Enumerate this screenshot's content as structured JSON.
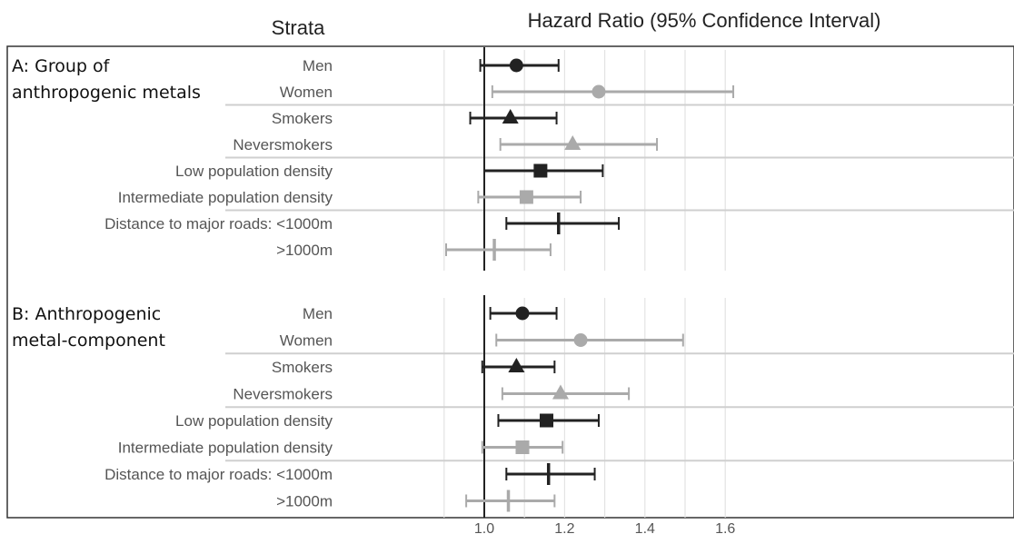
{
  "header": {
    "strata_title": "Strata",
    "chart_title": "Hazard Ratio (95% Confidence Interval)"
  },
  "colors": {
    "dark": "#222222",
    "light": "#aaaaaa",
    "grid": "#e3e3e3",
    "separator": "#cfcfcf",
    "reference": "#222222"
  },
  "chart_data": {
    "type": "forest",
    "title": "Hazard Ratio (95% Confidence Interval)",
    "xlim": [
      0.8,
      1.65
    ],
    "xticks": [
      1.0,
      1.2,
      1.4,
      1.6
    ],
    "xtick_labels": [
      "1.0",
      "1.2",
      "1.4",
      "1.6"
    ],
    "gridlines": [
      0.9,
      1.0,
      1.1,
      1.2,
      1.3,
      1.4,
      1.5,
      1.6
    ],
    "reference_line": 1.0,
    "panels": [
      {
        "label": "A: Group of\nanthropogenic metals",
        "rows": [
          {
            "stratum": "Men",
            "hr": 1.08,
            "lo": 0.99,
            "hi": 1.185,
            "marker": "circle",
            "shade": "dark"
          },
          {
            "stratum": "Women",
            "hr": 1.285,
            "lo": 1.02,
            "hi": 1.62,
            "marker": "circle",
            "shade": "light"
          },
          {
            "stratum": "Smokers",
            "hr": 1.065,
            "lo": 0.965,
            "hi": 1.18,
            "marker": "triangle",
            "shade": "dark"
          },
          {
            "stratum": "Neversmokers",
            "hr": 1.22,
            "lo": 1.04,
            "hi": 1.43,
            "marker": "triangle",
            "shade": "light"
          },
          {
            "stratum": "Low population density",
            "hr": 1.14,
            "lo": 1.0,
            "hi": 1.295,
            "marker": "square",
            "shade": "dark"
          },
          {
            "stratum": "Intermediate population density",
            "hr": 1.105,
            "lo": 0.985,
            "hi": 1.24,
            "marker": "square",
            "shade": "light"
          },
          {
            "stratum": "Distance to major roads: <1000m",
            "hr": 1.185,
            "lo": 1.055,
            "hi": 1.335,
            "marker": "vline",
            "shade": "dark"
          },
          {
            "stratum": ">1000m",
            "hr": 1.025,
            "lo": 0.905,
            "hi": 1.165,
            "marker": "vline",
            "shade": "light"
          }
        ]
      },
      {
        "label": "B: Anthropogenic\nmetal-component",
        "rows": [
          {
            "stratum": "Men",
            "hr": 1.095,
            "lo": 1.015,
            "hi": 1.18,
            "marker": "circle",
            "shade": "dark"
          },
          {
            "stratum": "Women",
            "hr": 1.24,
            "lo": 1.03,
            "hi": 1.495,
            "marker": "circle",
            "shade": "light"
          },
          {
            "stratum": "Smokers",
            "hr": 1.08,
            "lo": 0.995,
            "hi": 1.175,
            "marker": "triangle",
            "shade": "dark"
          },
          {
            "stratum": "Neversmokers",
            "hr": 1.19,
            "lo": 1.045,
            "hi": 1.36,
            "marker": "triangle",
            "shade": "light"
          },
          {
            "stratum": "Low population density",
            "hr": 1.155,
            "lo": 1.035,
            "hi": 1.285,
            "marker": "square",
            "shade": "dark"
          },
          {
            "stratum": "Intermediate population density",
            "hr": 1.095,
            "lo": 0.995,
            "hi": 1.195,
            "marker": "square",
            "shade": "light"
          },
          {
            "stratum": "Distance to major roads: <1000m",
            "hr": 1.16,
            "lo": 1.055,
            "hi": 1.275,
            "marker": "vline",
            "shade": "dark"
          },
          {
            "stratum": ">1000m",
            "hr": 1.06,
            "lo": 0.955,
            "hi": 1.175,
            "marker": "vline",
            "shade": "light"
          }
        ]
      }
    ]
  }
}
